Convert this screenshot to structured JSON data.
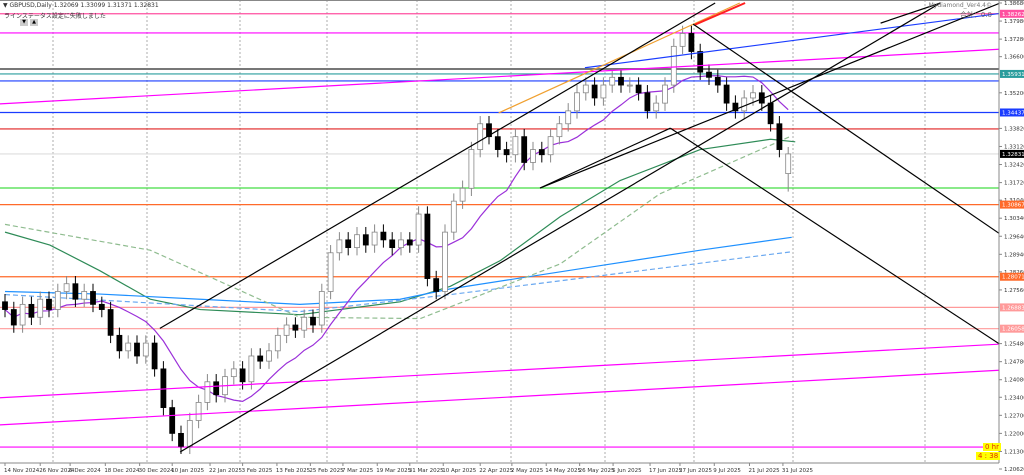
{
  "header": {
    "symbol_line": "▼ GBPUSD,Daily  1.32069 1.33099 1.31371 1.32831",
    "message": "ラインステータス設定に失敗しました",
    "btn_down": "▼",
    "btn_up": "▲"
  },
  "indicator": {
    "name": "Mydiamond_Ver4.4©",
    "total": "合計：0.0"
  },
  "timer": {
    "line1": "0 hr",
    "line2": "4 : 38"
  },
  "chart_data": {
    "type": "candlestick",
    "symbol": "GBPUSD",
    "timeframe": "Daily",
    "ylim": [
      1.2062,
      1.3868
    ],
    "grid": "vertical-dotted",
    "price_ticks": [
      "1.38680",
      "1.37980",
      "1.37280",
      "1.36600",
      "1.35200",
      "1.33820",
      "1.33120",
      "1.32420",
      "1.31720",
      "1.31040",
      "1.30340",
      "1.29640",
      "1.28940",
      "1.28260",
      "1.27560",
      "1.25480",
      "1.24780",
      "1.24080",
      "1.23400",
      "1.22700",
      "1.22000",
      "1.21300",
      "1.20620"
    ],
    "date_ticks": [
      [
        "14 Nov 2024",
        0
      ],
      [
        "26 Nov 2024",
        4
      ],
      [
        "6 Dec 2024",
        7.4
      ],
      [
        "18 Dec 2024",
        11.4
      ],
      [
        "30 Dec 2024",
        15.3
      ],
      [
        "10 Jan 2025",
        19
      ],
      [
        "22 Jan 2025",
        23.3
      ],
      [
        "3 Feb 2025",
        27
      ],
      [
        "13 Feb 2025",
        30.9
      ],
      [
        "25 Feb 2025",
        34.7
      ],
      [
        "7 Mar 2025",
        38.4
      ],
      [
        "19 Mar 2025",
        42.3
      ],
      [
        "31 Mar 2025",
        46
      ],
      [
        "10 Apr 2025",
        49.8
      ],
      [
        "22 Apr 2025",
        54
      ],
      [
        "2 May 2025",
        57.6
      ],
      [
        "14 May 2025",
        61.5
      ],
      [
        "26 May 2025",
        65.3
      ],
      [
        "5 Jun 2025",
        69.1
      ],
      [
        "17 Jun 2025",
        73.3
      ],
      [
        "27 Jun 2025",
        76.7
      ],
      [
        "9 Jul 2025",
        80.6
      ],
      [
        "21 Jul 2025",
        84.6
      ],
      [
        "31 Jul 2025",
        88.4
      ]
    ],
    "closes": [
      1.268,
      1.262,
      1.27,
      1.265,
      1.272,
      1.268,
      1.275,
      1.278,
      1.272,
      1.275,
      1.27,
      1.268,
      1.258,
      1.252,
      1.255,
      1.25,
      1.255,
      1.245,
      1.23,
      1.22,
      1.215,
      1.225,
      1.232,
      1.24,
      1.235,
      1.242,
      1.245,
      1.24,
      1.25,
      1.248,
      1.252,
      1.258,
      1.262,
      1.26,
      1.265,
      1.262,
      1.275,
      1.29,
      1.295,
      1.292,
      1.297,
      1.293,
      1.298,
      1.295,
      1.292,
      1.295,
      1.293,
      1.305,
      1.28,
      1.275,
      1.298,
      1.31,
      1.315,
      1.33,
      1.34,
      1.335,
      1.33,
      1.328,
      1.335,
      1.325,
      1.33,
      1.328,
      1.335,
      1.34,
      1.345,
      1.352,
      1.355,
      1.35,
      1.355,
      1.358,
      1.355,
      1.355,
      1.352,
      1.345,
      1.348,
      1.355,
      1.37,
      1.375,
      1.368,
      1.36,
      1.358,
      1.355,
      1.348,
      1.345,
      1.35,
      1.352,
      1.348,
      1.34,
      1.33,
      1.3283
    ],
    "last_candle": {
      "open": 1.32069,
      "high": 1.33099,
      "low": 1.31371,
      "close": 1.32831
    },
    "moving_averages": [
      {
        "color": "#2e8b57",
        "style": "solid",
        "points": [
          [
            0,
            1.298
          ],
          [
            5.1,
            1.293
          ],
          [
            10.8,
            1.283
          ],
          [
            16.5,
            1.272
          ],
          [
            22.2,
            1.268
          ],
          [
            33.5,
            1.266
          ],
          [
            44.9,
            1.271
          ],
          [
            50.6,
            1.277
          ],
          [
            56.3,
            1.287
          ],
          [
            63.1,
            1.304
          ],
          [
            69.9,
            1.318
          ],
          [
            79,
            1.33
          ],
          [
            87,
            1.334
          ],
          [
            89.8,
            1.333
          ]
        ]
      },
      {
        "color": "#1e90ff",
        "style": "solid",
        "points": [
          [
            0,
            1.275
          ],
          [
            10.8,
            1.274
          ],
          [
            22.2,
            1.272
          ],
          [
            33.5,
            1.27
          ],
          [
            44.9,
            1.272
          ],
          [
            50.6,
            1.276
          ],
          [
            67.6,
            1.285
          ],
          [
            79,
            1.291
          ],
          [
            89.4,
            1.296
          ]
        ]
      },
      {
        "color": "#8fbc8f",
        "style": "dashed",
        "points": [
          [
            0,
            1.301
          ],
          [
            16.5,
            1.291
          ],
          [
            33.5,
            1.265
          ],
          [
            47.2,
            1.2645
          ],
          [
            63.1,
            1.2857
          ],
          [
            74.4,
            1.3128
          ],
          [
            89.4,
            1.3353
          ]
        ]
      },
      {
        "color": "#6aa8f0",
        "style": "dashed",
        "points": [
          [
            0,
            1.2738
          ],
          [
            33.5,
            1.2672
          ],
          [
            50.6,
            1.2738
          ],
          [
            73.3,
            1.2835
          ],
          [
            89.4,
            1.2904
          ]
        ]
      }
    ],
    "fast_ma": {
      "color": "#9b30d9",
      "period_bars": 10
    },
    "horizontal_levels": [
      {
        "price": 1.38262,
        "color": "#ff4fa0",
        "label": "1.38262"
      },
      {
        "price": 1.3752,
        "color": "#ff00ff"
      },
      {
        "price": 1.3612,
        "color": "#777777"
      },
      {
        "price": 1.35931,
        "color": "#2a9d9d",
        "label": "1.35931"
      },
      {
        "price": 1.3566,
        "color": "#1a3cff"
      },
      {
        "price": 1.34437,
        "color": "#1a3cff",
        "label": "1.34437"
      },
      {
        "price": 1.338,
        "color": "#e02020"
      },
      {
        "price": 1.32831,
        "color": "#dddddd",
        "label": "1.32831"
      },
      {
        "price": 1.3151,
        "color": "#44dd44"
      },
      {
        "price": 1.30867,
        "color": "#ff6a2a",
        "label": "1.30867"
      },
      {
        "price": 1.28071,
        "color": "#ff6a2a",
        "label": "1.28071"
      },
      {
        "price": 1.26883,
        "color": "#ff9a9a",
        "label": "1.26883"
      },
      {
        "price": 1.26058,
        "color": "#ff9a9a",
        "label": "1.26058"
      },
      {
        "price": 1.2147,
        "color": "#ff00ff"
      }
    ],
    "trendlines": [
      {
        "color": "#ff00ff",
        "from": [
          -0.6,
          1.3477
        ],
        "to": [
          115.8,
          1.3694
        ]
      },
      {
        "color": "#ff00ff",
        "from": [
          -0.6,
          1.2338
        ],
        "to": [
          115.8,
          1.2551
        ]
      },
      {
        "color": "#ff00ff",
        "from": [
          -0.6,
          1.2233
        ],
        "to": [
          115.8,
          1.245
        ]
      },
      {
        "color": "#1a3cff",
        "from": [
          65.9,
          1.3617
        ],
        "to": [
          113.6,
          1.383
        ]
      },
      {
        "color": "#f0a030",
        "from": [
          56.1,
          1.3442
        ],
        "to": [
          83.5,
          1.3868
        ]
      },
      {
        "color": "#ff2020",
        "from": [
          78.4,
          1.3784
        ],
        "to": [
          84.1,
          1.3868
        ]
      },
      {
        "color": "#000000",
        "from": [
          17.6,
          1.2607
        ],
        "to": [
          80.7,
          1.3868
        ]
      },
      {
        "color": "#000000",
        "from": [
          19.9,
          1.2128
        ],
        "to": [
          106.3,
          1.3868
        ]
      },
      {
        "color": "#000000",
        "from": [
          60.8,
          1.3151
        ],
        "to": [
          113.1,
          1.3868
        ]
      },
      {
        "color": "#000000",
        "from": [
          78.2,
          1.3786
        ],
        "to": [
          115.8,
          1.2909
        ]
      },
      {
        "color": "#000000",
        "from": [
          75.6,
          1.3383
        ],
        "to": [
          115.8,
          1.2484
        ]
      },
      {
        "color": "#000000",
        "from": [
          60.8,
          1.3151
        ],
        "to": [
          75.6,
          1.3383
        ]
      },
      {
        "color": "#000000",
        "from": [
          99.5,
          1.379
        ],
        "to": [
          106.3,
          1.3868
        ]
      }
    ]
  }
}
